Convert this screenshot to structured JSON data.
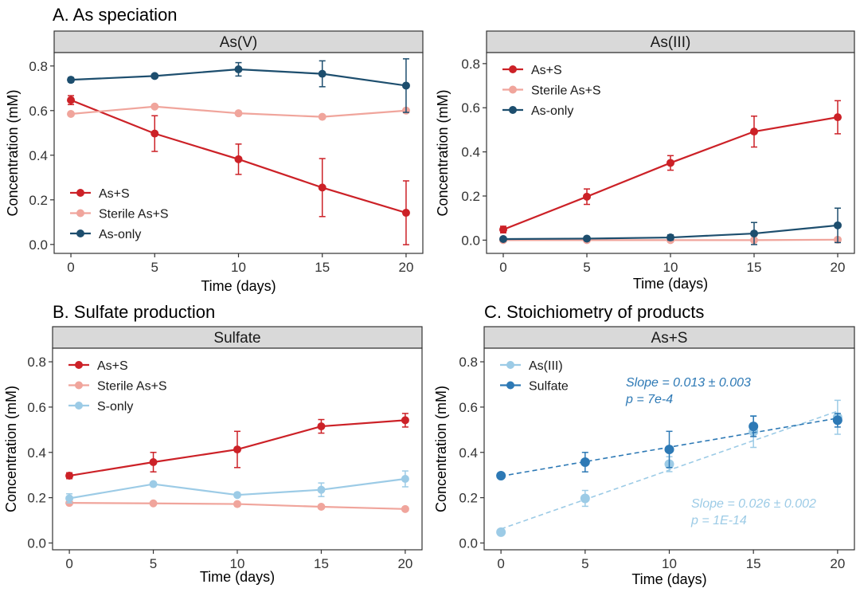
{
  "figure": {
    "section_titles": [
      "A. As speciation",
      "B. Sulfate production",
      "C. Stoichiometry of products"
    ]
  },
  "colors": {
    "as_s": "#cc2127",
    "sterile": "#f0a59c",
    "as_only": "#1d4e6e",
    "s_only": "#9ccbe6",
    "as3_light": "#9ccbe6",
    "sulfate_dark": "#2d79b5",
    "strip_fill": "#d9d9d9"
  },
  "chart_data": [
    {
      "type": "line",
      "panel": "As(V)",
      "xlabel": "Time (days)",
      "ylabel": "Concentration (mM)",
      "x": [
        0,
        5,
        10,
        15,
        20
      ],
      "xlim": [
        -1,
        21
      ],
      "ylim": [
        -0.04,
        0.86
      ],
      "yticks": [
        0.0,
        0.2,
        0.4,
        0.6,
        0.8
      ],
      "ytick_labels": [
        "0.0",
        "0.2",
        "0.4",
        "0.6",
        "0.8"
      ],
      "xtick_labels": [
        "0",
        "5",
        "10",
        "15",
        "20"
      ],
      "legend_position": "bottom-left",
      "series": [
        {
          "name": "As+S",
          "color_key": "as_s",
          "values": [
            0.647,
            0.497,
            0.382,
            0.255,
            0.142
          ],
          "errors": [
            0.02,
            0.08,
            0.068,
            0.13,
            0.143
          ]
        },
        {
          "name": "Sterile As+S",
          "color_key": "sterile",
          "values": [
            0.585,
            0.618,
            0.588,
            0.572,
            0.6
          ],
          "errors": [
            0,
            0,
            0,
            0,
            0
          ]
        },
        {
          "name": "As-only",
          "color_key": "as_only",
          "values": [
            0.738,
            0.755,
            0.785,
            0.765,
            0.712
          ],
          "errors": [
            0.01,
            0.008,
            0.03,
            0.058,
            0.12
          ]
        }
      ]
    },
    {
      "type": "line",
      "panel": "As(III)",
      "xlabel": "Time (days)",
      "ylabel": "Concentration (mM)",
      "x": [
        0,
        5,
        10,
        15,
        20
      ],
      "xlim": [
        -1,
        21
      ],
      "ylim": [
        -0.06,
        0.85
      ],
      "yticks": [
        0.0,
        0.2,
        0.4,
        0.6,
        0.8
      ],
      "ytick_labels": [
        "0.0",
        "0.2",
        "0.4",
        "0.6",
        "0.8"
      ],
      "xtick_labels": [
        "0",
        "5",
        "10",
        "15",
        "20"
      ],
      "legend_position": "top-left",
      "series": [
        {
          "name": "As+S",
          "color_key": "as_s",
          "values": [
            0.048,
            0.197,
            0.35,
            0.492,
            0.557
          ],
          "errors": [
            0.015,
            0.035,
            0.033,
            0.07,
            0.075
          ]
        },
        {
          "name": "Sterile As+S",
          "color_key": "sterile",
          "values": [
            0.0,
            0.0,
            0.0,
            0.0,
            0.002
          ],
          "errors": [
            0,
            0,
            0,
            0,
            0
          ]
        },
        {
          "name": "As-only",
          "color_key": "as_only",
          "values": [
            0.005,
            0.007,
            0.012,
            0.03,
            0.067
          ],
          "errors": [
            0.005,
            0.008,
            0.012,
            0.05,
            0.078
          ]
        }
      ]
    },
    {
      "type": "line",
      "panel": "Sulfate",
      "xlabel": "Time (days)",
      "ylabel": "Concentration (mM)",
      "x": [
        0,
        5,
        10,
        15,
        20
      ],
      "xlim": [
        -1,
        21
      ],
      "ylim": [
        -0.03,
        0.86
      ],
      "yticks": [
        0.0,
        0.2,
        0.4,
        0.6,
        0.8
      ],
      "ytick_labels": [
        "0.0",
        "0.2",
        "0.4",
        "0.6",
        "0.8"
      ],
      "xtick_labels": [
        "0",
        "5",
        "10",
        "15",
        "20"
      ],
      "legend_position": "top-left",
      "series": [
        {
          "name": "As+S",
          "color_key": "as_s",
          "values": [
            0.297,
            0.357,
            0.413,
            0.515,
            0.542
          ],
          "errors": [
            0.013,
            0.043,
            0.08,
            0.03,
            0.03
          ]
        },
        {
          "name": "Sterile As+S",
          "color_key": "sterile",
          "values": [
            0.177,
            0.175,
            0.172,
            0.16,
            0.15
          ],
          "errors": [
            0,
            0,
            0,
            0,
            0
          ]
        },
        {
          "name": "S-only",
          "color_key": "s_only",
          "values": [
            0.197,
            0.26,
            0.212,
            0.235,
            0.283
          ],
          "errors": [
            0.02,
            0.008,
            0.008,
            0.03,
            0.035
          ]
        }
      ]
    },
    {
      "type": "scatter",
      "panel": "As+S",
      "xlabel": "Time (days)",
      "ylabel": "Concentration (mM)",
      "x": [
        0,
        5,
        10,
        15,
        20
      ],
      "xlim": [
        -1,
        21
      ],
      "ylim": [
        -0.03,
        0.86
      ],
      "yticks": [
        0.0,
        0.2,
        0.4,
        0.6,
        0.8
      ],
      "ytick_labels": [
        "0.0",
        "0.2",
        "0.4",
        "0.6",
        "0.8"
      ],
      "xtick_labels": [
        "0",
        "5",
        "10",
        "15",
        "20"
      ],
      "legend_position": "top-left",
      "series": [
        {
          "name": "As(III)",
          "color_key": "as3_light",
          "values": [
            0.048,
            0.197,
            0.348,
            0.492,
            0.555
          ],
          "errors": [
            0.012,
            0.035,
            0.033,
            0.07,
            0.075
          ],
          "fit": {
            "intercept": 0.062,
            "slope": 0.026
          }
        },
        {
          "name": "Sulfate",
          "color_key": "sulfate_dark",
          "values": [
            0.297,
            0.357,
            0.413,
            0.515,
            0.542
          ],
          "errors": [
            0.01,
            0.043,
            0.08,
            0.045,
            0.03
          ],
          "fit": {
            "intercept": 0.295,
            "slope": 0.0128
          }
        }
      ],
      "annotations": [
        {
          "series": "Sulfate",
          "color_key": "sulfate_dark",
          "line1": "Slope  = 0.013 ± 0.003",
          "line2": "p = 7e-4",
          "position": "top-right"
        },
        {
          "series": "As(III)",
          "color_key": "as3_light",
          "line1": "Slope  = 0.026 ± 0.002",
          "line2": "p = 1E-14",
          "position": "bottom-right"
        }
      ]
    }
  ]
}
